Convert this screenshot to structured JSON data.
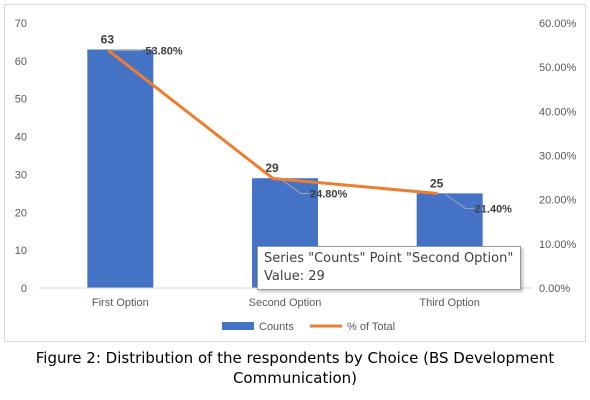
{
  "chart_data": {
    "type": "bar",
    "categories": [
      "First Option",
      "Second Option",
      "Third Option"
    ],
    "series": [
      {
        "name": "Counts",
        "type": "bar",
        "axis": "left",
        "color": "#4472c4",
        "values": [
          63,
          29,
          25
        ],
        "labels": [
          "63",
          "29",
          "25"
        ]
      },
      {
        "name": "% of Total",
        "type": "line",
        "axis": "right",
        "color": "#ed7d31",
        "values": [
          53.8,
          24.8,
          21.4
        ],
        "labels": [
          "53.80%",
          "24.80%",
          "21.40%"
        ]
      }
    ],
    "y_left": {
      "min": 0,
      "max": 70,
      "ticks": [
        "0",
        "10",
        "20",
        "30",
        "40",
        "50",
        "60",
        "70"
      ]
    },
    "y_right": {
      "min": 0,
      "max": 60,
      "ticks": [
        "0.00%",
        "10.00%",
        "20.00%",
        "30.00%",
        "40.00%",
        "50.00%",
        "60.00%"
      ]
    },
    "grid": false,
    "legend_position": "bottom"
  },
  "tooltip": {
    "line1": "Series \"Counts\" Point \"Second Option\"",
    "line2": "Value: 29"
  },
  "caption": {
    "line1": "Figure 2: Distribution of the respondents by Choice (BS Development",
    "line2": "Communication)"
  }
}
